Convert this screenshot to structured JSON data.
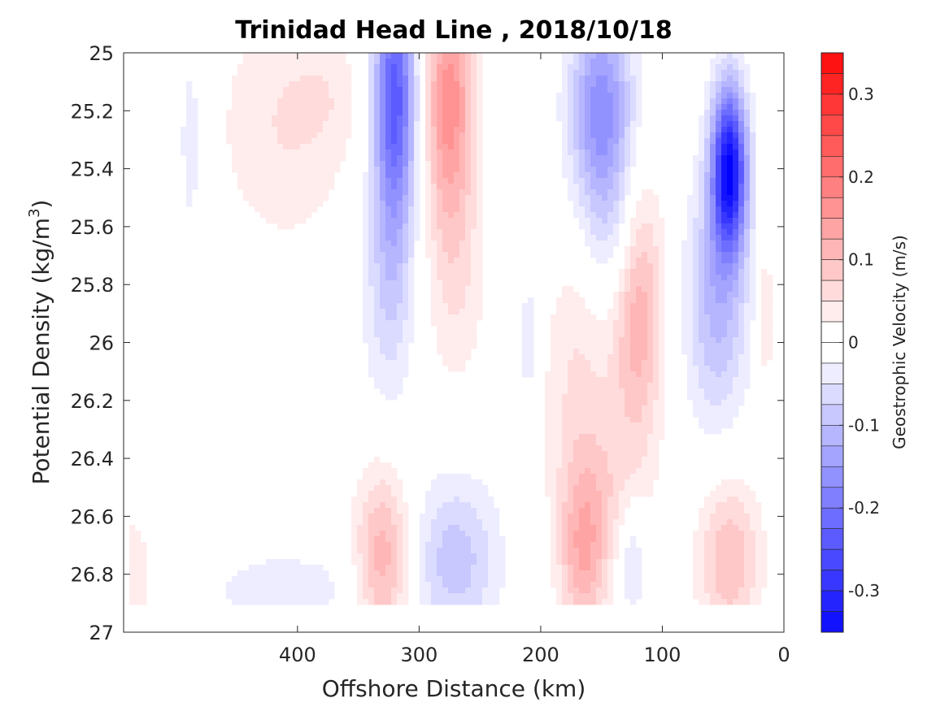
{
  "chart_data": {
    "type": "contour",
    "title": "Trinidad Head Line , 2018/10/18",
    "xlabel": "Offshore Distance (km)",
    "ylabel_main": "Potential Density (kg/m",
    "ylabel_sup": "3",
    "ylabel_close": ")",
    "colorbar_label": "Geostrophic Velocity (m/s)",
    "x_reversed": true,
    "xlim": [
      0,
      543
    ],
    "ylim": [
      25,
      27
    ],
    "y_reversed": true,
    "x_ticks": [
      400,
      300,
      200,
      100,
      0
    ],
    "x_tick_labels": [
      "400",
      "300",
      "200",
      "100",
      "0"
    ],
    "y_ticks": [
      25,
      25.2,
      25.4,
      25.6,
      25.8,
      26,
      26.2,
      26.4,
      26.6,
      26.8,
      27
    ],
    "y_tick_labels": [
      "25",
      "25.2",
      "25.4",
      "25.6",
      "25.8",
      "26",
      "26.2",
      "26.4",
      "26.6",
      "26.8",
      "27"
    ],
    "colorbar_range": [
      -0.35,
      0.35
    ],
    "colorbar_step": 0.025,
    "colorbar_ticks": [
      0.3,
      0.2,
      0.1,
      0,
      -0.1,
      -0.2,
      -0.3
    ],
    "colorbar_tick_labels": [
      "0.3",
      "0.2",
      "0.1",
      "0",
      "-0.1",
      "-0.2",
      "-0.3"
    ],
    "colormap": {
      "negative": "#0000ff",
      "zero": "#ffffff",
      "positive": "#ff0000"
    },
    "features": [
      {
        "x": 488,
        "y": 25.3,
        "sx": 6,
        "sy": 0.22,
        "amp": -0.05
      },
      {
        "x": 410,
        "y": 25.25,
        "sx": 40,
        "sy": 0.3,
        "amp": 0.05
      },
      {
        "x": 375,
        "y": 25.15,
        "sx": 20,
        "sy": 0.12,
        "amp": 0.02
      },
      {
        "x": 320,
        "y": 25.15,
        "sx": 12,
        "sy": 0.32,
        "amp": -0.24
      },
      {
        "x": 325,
        "y": 25.8,
        "sx": 15,
        "sy": 0.3,
        "amp": -0.07
      },
      {
        "x": 275,
        "y": 25.15,
        "sx": 14,
        "sy": 0.3,
        "amp": 0.16
      },
      {
        "x": 270,
        "y": 25.75,
        "sx": 18,
        "sy": 0.3,
        "amp": 0.05
      },
      {
        "x": 210,
        "y": 26.0,
        "sx": 5,
        "sy": 0.25,
        "amp": -0.04
      },
      {
        "x": 150,
        "y": 25.2,
        "sx": 18,
        "sy": 0.25,
        "amp": -0.17
      },
      {
        "x": 140,
        "y": 25.65,
        "sx": 15,
        "sy": 0.2,
        "amp": -0.05
      },
      {
        "x": 120,
        "y": 25.9,
        "sx": 15,
        "sy": 0.32,
        "amp": 0.12
      },
      {
        "x": 170,
        "y": 26.1,
        "sx": 20,
        "sy": 0.3,
        "amp": 0.05
      },
      {
        "x": 45,
        "y": 25.4,
        "sx": 10,
        "sy": 0.2,
        "amp": -0.34
      },
      {
        "x": 55,
        "y": 25.85,
        "sx": 18,
        "sy": 0.3,
        "amp": -0.11
      },
      {
        "x": 15,
        "y": 25.9,
        "sx": 5,
        "sy": 0.2,
        "amp": 0.05
      },
      {
        "x": 330,
        "y": 26.75,
        "sx": 16,
        "sy": 0.22,
        "amp": 0.12
      },
      {
        "x": 270,
        "y": 26.75,
        "sx": 25,
        "sy": 0.2,
        "amp": -0.09
      },
      {
        "x": 165,
        "y": 26.75,
        "sx": 14,
        "sy": 0.2,
        "amp": 0.11
      },
      {
        "x": 150,
        "y": 26.5,
        "sx": 25,
        "sy": 0.2,
        "amp": 0.05
      },
      {
        "x": 410,
        "y": 26.85,
        "sx": 50,
        "sy": 0.1,
        "amp": -0.04
      },
      {
        "x": 125,
        "y": 26.75,
        "sx": 8,
        "sy": 0.15,
        "amp": -0.06
      },
      {
        "x": 45,
        "y": 26.75,
        "sx": 18,
        "sy": 0.2,
        "amp": 0.1
      },
      {
        "x": 540,
        "y": 26.8,
        "sx": 15,
        "sy": 0.15,
        "amp": 0.05
      }
    ]
  }
}
